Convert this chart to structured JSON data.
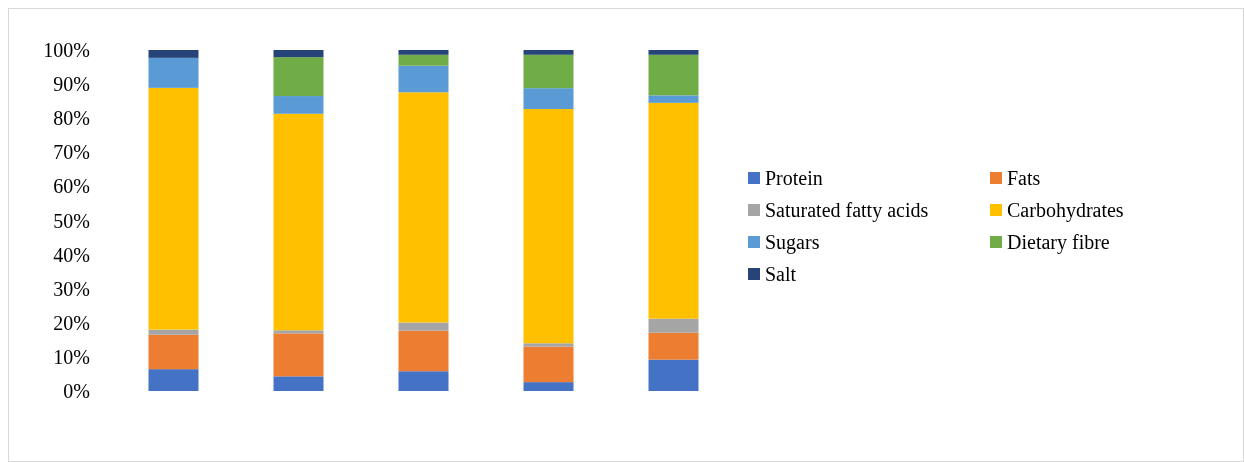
{
  "chart_data": {
    "type": "bar",
    "stacked": true,
    "categories": [
      null,
      null,
      null,
      null,
      null
    ],
    "ylim": [
      0,
      100
    ],
    "yticks": [
      {
        "value": 0,
        "label": "0%"
      },
      {
        "value": 10,
        "label": "10%"
      },
      {
        "value": 20,
        "label": "20%"
      },
      {
        "value": 30,
        "label": "30%"
      },
      {
        "value": 40,
        "label": "40%"
      },
      {
        "value": 50,
        "label": "50%"
      },
      {
        "value": 60,
        "label": "60%"
      },
      {
        "value": 70,
        "label": "70%"
      },
      {
        "value": 80,
        "label": "80%"
      },
      {
        "value": 90,
        "label": "90%"
      },
      {
        "value": 100,
        "label": "100%"
      }
    ],
    "legend": "right",
    "grid": false,
    "series": [
      {
        "name": "Protein",
        "color": "#4472c4",
        "values": [
          6.4,
          4.3,
          5.8,
          2.6,
          9.2
        ]
      },
      {
        "name": "Fats",
        "color": "#ed7d31",
        "values": [
          10.1,
          12.6,
          11.9,
          10.4,
          7.9
        ]
      },
      {
        "name": "Saturated fatty acids",
        "color": "#a5a5a5",
        "values": [
          1.5,
          0.9,
          2.4,
          1.0,
          4.1
        ]
      },
      {
        "name": "Carbohydrates",
        "color": "#ffc000",
        "values": [
          70.9,
          63.5,
          67.5,
          68.7,
          63.3
        ]
      },
      {
        "name": "Sugars",
        "color": "#5b9bd5",
        "values": [
          8.8,
          5.2,
          7.8,
          6.1,
          2.2
        ]
      },
      {
        "name": "Dietary fibre",
        "color": "#70ad47",
        "values": [
          0,
          11.4,
          3.2,
          9.8,
          11.9
        ]
      },
      {
        "name": "Salt",
        "color": "#264478",
        "values": [
          2.3,
          2.1,
          1.4,
          1.4,
          1.4
        ]
      }
    ]
  }
}
